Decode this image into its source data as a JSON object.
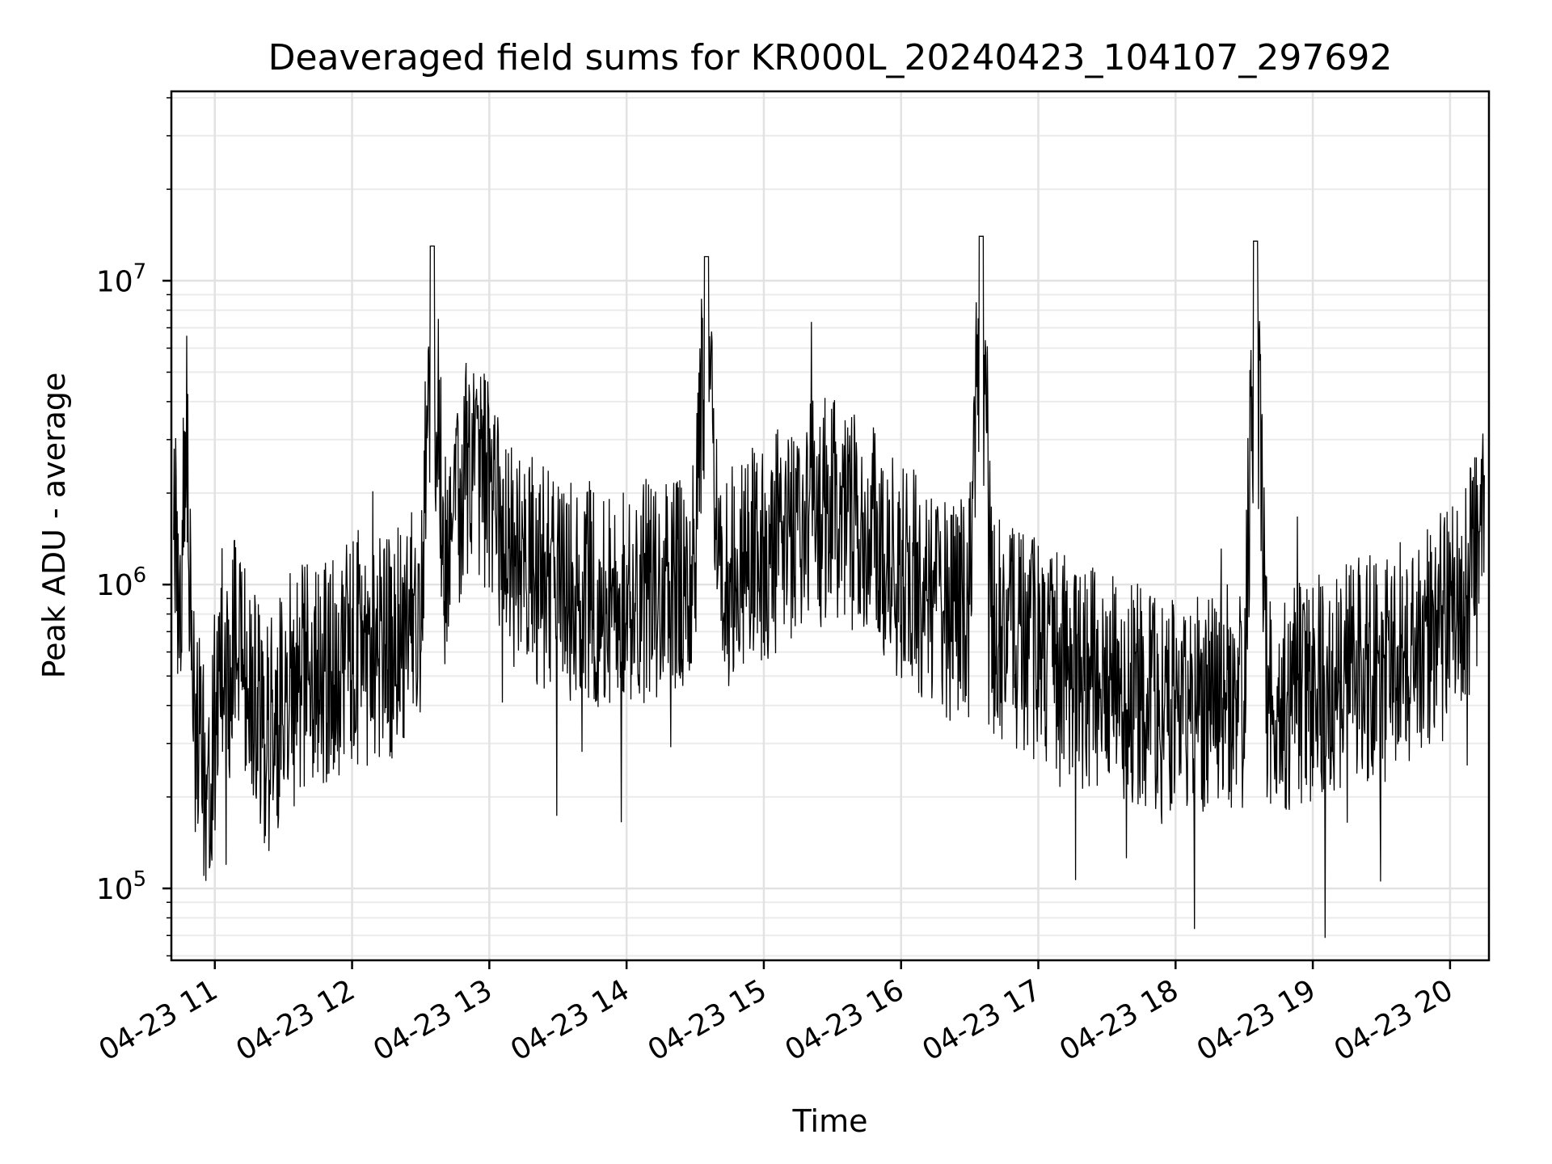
{
  "chart_data": {
    "type": "line",
    "title": "Deaveraged field sums for KR000L_20240423_104107_297692",
    "xlabel": "Time",
    "ylabel": "Peak ADU - average",
    "yscale": "log",
    "ylim": [
      58000,
      42000000
    ],
    "xlim": [
      "2024-04-23 10:41",
      "2024-04-23 20:17"
    ],
    "x_ticks": [
      {
        "value": "2024-04-23 11:00",
        "label": "04-23 11"
      },
      {
        "value": "2024-04-23 12:00",
        "label": "04-23 12"
      },
      {
        "value": "2024-04-23 13:00",
        "label": "04-23 13"
      },
      {
        "value": "2024-04-23 14:00",
        "label": "04-23 14"
      },
      {
        "value": "2024-04-23 15:00",
        "label": "04-23 15"
      },
      {
        "value": "2024-04-23 16:00",
        "label": "04-23 16"
      },
      {
        "value": "2024-04-23 17:00",
        "label": "04-23 17"
      },
      {
        "value": "2024-04-23 18:00",
        "label": "04-23 18"
      },
      {
        "value": "2024-04-23 19:00",
        "label": "04-23 19"
      },
      {
        "value": "2024-04-23 20:00",
        "label": "04-23 20"
      }
    ],
    "y_ticks": [
      {
        "value": 100000,
        "base": "10",
        "exp": "5"
      },
      {
        "value": 1000000,
        "base": "10",
        "exp": "6"
      },
      {
        "value": 10000000,
        "base": "10",
        "exp": "7"
      }
    ],
    "grid": true,
    "line_color": "#000000",
    "series": [
      {
        "x": [
          "2024-04-23 10:42",
          "2024-04-23 10:45",
          "2024-04-23 10:48",
          "2024-04-23 10:50",
          "2024-04-23 10:52",
          "2024-04-23 10:55",
          "2024-04-23 10:58",
          "2024-04-23 11:00",
          "2024-04-23 11:03",
          "2024-04-23 11:06",
          "2024-04-23 11:10",
          "2024-04-23 11:15",
          "2024-04-23 11:20",
          "2024-04-23 11:25",
          "2024-04-23 11:30",
          "2024-04-23 11:40",
          "2024-04-23 11:50",
          "2024-04-23 12:00",
          "2024-04-23 12:10",
          "2024-04-23 12:20",
          "2024-04-23 12:30",
          "2024-04-23 12:35",
          "2024-04-23 12:40",
          "2024-04-23 12:45",
          "2024-04-23 12:50",
          "2024-04-23 12:55",
          "2024-04-23 13:00",
          "2024-04-23 13:05",
          "2024-04-23 13:10",
          "2024-04-23 13:20",
          "2024-04-23 13:30",
          "2024-04-23 13:40",
          "2024-04-23 13:50",
          "2024-04-23 14:00",
          "2024-04-23 14:10",
          "2024-04-23 14:20",
          "2024-04-23 14:30",
          "2024-04-23 14:35",
          "2024-04-23 14:40",
          "2024-04-23 14:50",
          "2024-04-23 15:00",
          "2024-04-23 15:10",
          "2024-04-23 15:20",
          "2024-04-23 15:30",
          "2024-04-23 15:40",
          "2024-04-23 15:45",
          "2024-04-23 15:50",
          "2024-04-23 16:00",
          "2024-04-23 16:10",
          "2024-04-23 16:20",
          "2024-04-23 16:30",
          "2024-04-23 16:35",
          "2024-04-23 16:40",
          "2024-04-23 16:50",
          "2024-04-23 17:00",
          "2024-04-23 17:10",
          "2024-04-23 17:20",
          "2024-04-23 17:30",
          "2024-04-23 17:40",
          "2024-04-23 17:50",
          "2024-04-23 18:00",
          "2024-04-23 18:10",
          "2024-04-23 18:20",
          "2024-04-23 18:30",
          "2024-04-23 18:35",
          "2024-04-23 18:40",
          "2024-04-23 18:50",
          "2024-04-23 19:00",
          "2024-04-23 19:10",
          "2024-04-23 19:20",
          "2024-04-23 19:30",
          "2024-04-23 19:40",
          "2024-04-23 19:50",
          "2024-04-23 20:00",
          "2024-04-23 20:08",
          "2024-04-23 20:15"
        ],
        "y": [
          1500000,
          900000,
          3500000,
          400000,
          300000,
          260000,
          200000,
          350000,
          600000,
          500000,
          700000,
          450000,
          350000,
          300000,
          450000,
          500000,
          520000,
          600000,
          550000,
          650000,
          800000,
          13000000,
          1200000,
          1800000,
          2500000,
          2200000,
          2100000,
          1600000,
          1200000,
          1100000,
          950000,
          1000000,
          900000,
          850000,
          1000000,
          950000,
          1100000,
          12000000,
          1000000,
          1100000,
          1300000,
          1500000,
          1700000,
          1800000,
          1600000,
          1500000,
          1400000,
          1100000,
          1000000,
          800000,
          850000,
          14000000,
          700000,
          650000,
          600000,
          550000,
          500000,
          480000,
          450000,
          420000,
          400000,
          410000,
          430000,
          420000,
          13500000,
          420000,
          430000,
          450000,
          500000,
          520000,
          550000,
          600000,
          650000,
          800000,
          1000000,
          1500000
        ]
      }
    ]
  }
}
